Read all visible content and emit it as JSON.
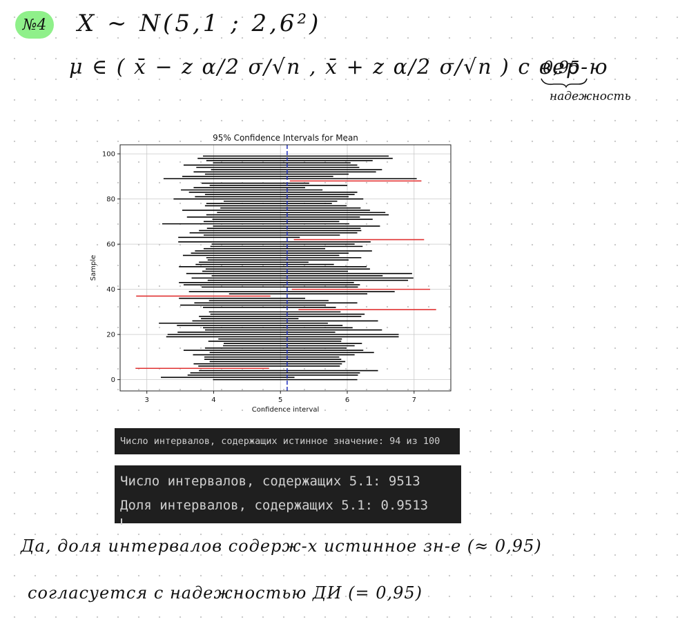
{
  "header": {
    "badge": "№4",
    "distribution": "X ~ N(5,1 ; 2,6²)",
    "interval": "μ ∈ ( x̄ − z α/2 σ/√n , x̄ + z α/2 σ/√n )  с вер-ю",
    "confidence_level": "0,95",
    "confidence_note": "надежность"
  },
  "chart_data": {
    "type": "interval",
    "title": "95% Confidence Intervals for Mean",
    "xlabel": "Confidence interval",
    "ylabel": "Sample",
    "xlim": [
      2.6,
      7.55
    ],
    "ylim": [
      -5,
      104
    ],
    "xticks": [
      3,
      4,
      5,
      6,
      7
    ],
    "yticks": [
      0,
      20,
      40,
      60,
      80,
      100
    ],
    "grid": true,
    "true_mean": 5.1,
    "colors": {
      "contains": "#000000",
      "misses": "#e03030",
      "mean_line": "#1f2fbf"
    },
    "intervals": [
      [
        3.99,
        6.15
      ],
      [
        3.21,
        5.21
      ],
      [
        3.61,
        6.16
      ],
      [
        3.65,
        6.19
      ],
      [
        3.78,
        6.46
      ],
      [
        2.83,
        4.83
      ],
      [
        3.77,
        5.89
      ],
      [
        3.7,
        5.92
      ],
      [
        3.94,
        5.97
      ],
      [
        3.86,
        5.91
      ],
      [
        3.86,
        5.88
      ],
      [
        3.69,
        6.11
      ],
      [
        3.94,
        6.4
      ],
      [
        3.55,
        6.24
      ],
      [
        3.87,
        5.99
      ],
      [
        4.14,
        6.11
      ],
      [
        4.15,
        6.22
      ],
      [
        3.92,
        5.91
      ],
      [
        4.07,
        5.92
      ],
      [
        3.29,
        6.77
      ],
      [
        3.31,
        6.77
      ],
      [
        3.46,
        5.82
      ],
      [
        3.87,
        6.52
      ],
      [
        3.84,
        6.08
      ],
      [
        3.45,
        5.93
      ],
      [
        3.18,
        5.71
      ],
      [
        3.68,
        6.46
      ],
      [
        3.81,
        5.27
      ],
      [
        3.78,
        6.21
      ],
      [
        3.95,
        6.26
      ],
      [
        3.93,
        5.9
      ],
      [
        5.27,
        7.33
      ],
      [
        3.84,
        5.83
      ],
      [
        3.5,
        5.68
      ],
      [
        3.71,
        6.15
      ],
      [
        3.93,
        5.72
      ],
      [
        3.48,
        5.37
      ],
      [
        2.84,
        4.85
      ],
      [
        4.23,
        6.3
      ],
      [
        3.63,
        6.71
      ],
      [
        5.17,
        7.24
      ],
      [
        3.82,
        6.16
      ],
      [
        3.55,
        6.19
      ],
      [
        3.48,
        6.1
      ],
      [
        3.91,
        6.91
      ],
      [
        3.67,
        6.99
      ],
      [
        3.97,
        6.53
      ],
      [
        3.59,
        6.97
      ],
      [
        3.83,
        6.01
      ],
      [
        3.88,
        6.34
      ],
      [
        3.48,
        6.29
      ],
      [
        3.73,
        5.8
      ],
      [
        3.78,
        5.42
      ],
      [
        3.91,
        6.02
      ],
      [
        3.89,
        6.21
      ],
      [
        3.54,
        5.88
      ],
      [
        3.66,
        6.02
      ],
      [
        3.72,
        6.37
      ],
      [
        3.85,
        5.67
      ],
      [
        3.95,
        6.23
      ],
      [
        3.97,
        6.11
      ],
      [
        3.47,
        6.35
      ],
      [
        5.2,
        7.15
      ],
      [
        3.47,
        5.29
      ],
      [
        3.85,
        5.89
      ],
      [
        3.64,
        6.15
      ],
      [
        3.78,
        6.21
      ],
      [
        3.9,
        6.2
      ],
      [
        3.99,
        6.49
      ],
      [
        3.23,
        6.03
      ],
      [
        3.85,
        5.88
      ],
      [
        3.98,
        6.38
      ],
      [
        3.6,
        6.19
      ],
      [
        3.89,
        6.62
      ],
      [
        4.05,
        6.57
      ],
      [
        3.53,
        6.34
      ],
      [
        4.1,
        6.2
      ],
      [
        3.87,
        5.99
      ],
      [
        3.89,
        5.77
      ],
      [
        4.15,
        5.85
      ],
      [
        3.4,
        6.24
      ],
      [
        3.72,
        6.02
      ],
      [
        3.87,
        6.11
      ],
      [
        3.63,
        6.15
      ],
      [
        3.51,
        5.63
      ],
      [
        3.7,
        5.37
      ],
      [
        3.94,
        6.0
      ],
      [
        3.82,
        5.43
      ],
      [
        5.14,
        7.11
      ],
      [
        3.25,
        7.04
      ],
      [
        3.53,
        5.79
      ],
      [
        3.87,
        6.02
      ],
      [
        3.7,
        6.43
      ],
      [
        3.96,
        6.52
      ],
      [
        3.74,
        6.18
      ],
      [
        3.55,
        6.15
      ],
      [
        3.99,
        6.05
      ],
      [
        3.89,
        6.38
      ],
      [
        3.76,
        6.68
      ],
      [
        3.84,
        6.62
      ]
    ]
  },
  "terminal1": {
    "line": "Число интервалов, содержащих истинное значение: 94 из 100"
  },
  "terminal2": {
    "line1": "Число интервалов, содержащих 5.1: 9513",
    "line2": "Доля интервалов, содержащих 5.1: 0.9513"
  },
  "conclusion": {
    "line1": "Да, доля интервалов содерж-х истинное зн-е (≈ 0,95)",
    "line2": "согласуется с надежностью ДИ (= 0,95)"
  }
}
